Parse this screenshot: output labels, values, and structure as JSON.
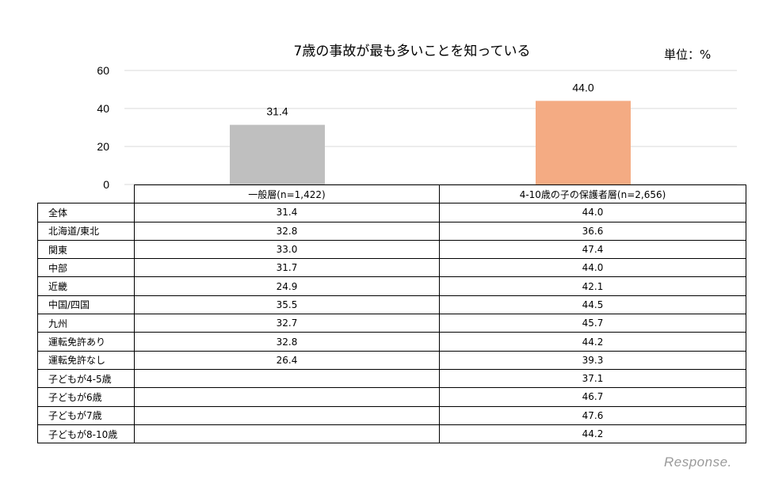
{
  "chart_data": {
    "type": "bar",
    "title": "7歳の事故が最も多いことを知っている",
    "unit_label": "単位：%",
    "categories": [
      "一般層(n=1,422)",
      "4-10歳の子の保護者層(n=2,656)"
    ],
    "values": [
      31.4,
      44.0
    ],
    "value_labels": [
      "31.4",
      "44.0"
    ],
    "colors": [
      "#bfbfbf",
      "#f4ab83"
    ],
    "ylim": [
      0,
      60
    ],
    "yticks": [
      "0",
      "20",
      "40",
      "60"
    ],
    "grid": true,
    "table": {
      "columns": [
        "一般層(n=1,422)",
        "4-10歳の子の保護者層(n=2,656)"
      ],
      "rows": [
        {
          "label": "全体",
          "values": [
            "31.4",
            "44.0"
          ]
        },
        {
          "label": "北海道/東北",
          "values": [
            "32.8",
            "36.6"
          ]
        },
        {
          "label": "関東",
          "values": [
            "33.0",
            "47.4"
          ]
        },
        {
          "label": "中部",
          "values": [
            "31.7",
            "44.0"
          ]
        },
        {
          "label": "近畿",
          "values": [
            "24.9",
            "42.1"
          ]
        },
        {
          "label": "中国/四国",
          "values": [
            "35.5",
            "44.5"
          ]
        },
        {
          "label": "九州",
          "values": [
            "32.7",
            "45.7"
          ]
        },
        {
          "label": "運転免許あり",
          "values": [
            "32.8",
            "44.2"
          ]
        },
        {
          "label": "運転免許なし",
          "values": [
            "26.4",
            "39.3"
          ]
        },
        {
          "label": "子どもが4-5歳",
          "values": [
            "",
            "37.1"
          ]
        },
        {
          "label": "子どもが6歳",
          "values": [
            "",
            "46.7"
          ]
        },
        {
          "label": "子どもが7歳",
          "values": [
            "",
            "47.6"
          ]
        },
        {
          "label": "子どもが8-10歳",
          "values": [
            "",
            "44.2"
          ]
        }
      ]
    }
  },
  "watermark": "Response."
}
